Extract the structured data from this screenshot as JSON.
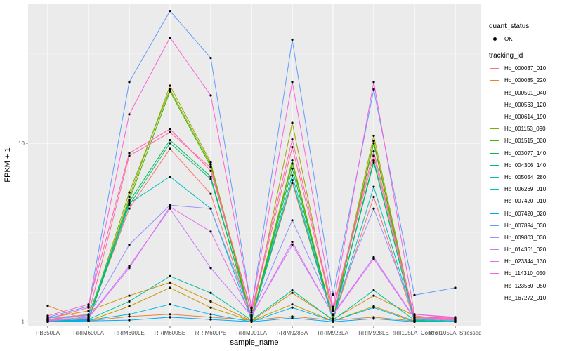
{
  "chart_data": {
    "type": "line",
    "xlabel": "sample_name",
    "ylabel": "FPKM + 1",
    "y_scale": "log10",
    "ylim": [
      0.95,
      60
    ],
    "y_ticks": [
      1,
      10
    ],
    "categories": [
      "PB350LA",
      "RRIM600LA",
      "RRIM600LE",
      "RRIM600SE",
      "RRIM600PE",
      "RRIM901LA",
      "RRIM928BA",
      "RRIM928LA",
      "RRIM928LE",
      "RRII105LA_Control",
      "RRII105LA_Stressed"
    ],
    "legend_quant": {
      "title": "quant_status",
      "items": [
        "OK"
      ]
    },
    "legend_tracking_title": "tracking_id",
    "series": [
      {
        "name": "Hb_000037_010",
        "color": "#F8766D",
        "values": [
          1.03,
          1.04,
          4.3,
          9.3,
          5.2,
          1.04,
          6.0,
          1.02,
          5.0,
          1.01,
          1.0
        ]
      },
      {
        "name": "Hb_000085_220",
        "color": "#EA8331",
        "values": [
          1.23,
          1.01,
          1.07,
          1.1,
          1.06,
          1.02,
          1.07,
          1.02,
          1.06,
          1.01,
          1.0
        ]
      },
      {
        "name": "Hb_000501_040",
        "color": "#D89000",
        "values": [
          1.05,
          1.15,
          1.4,
          1.66,
          1.3,
          1.01,
          1.45,
          1.03,
          1.4,
          1.08,
          1.02
        ]
      },
      {
        "name": "Hb_000563_120",
        "color": "#C09B00",
        "values": [
          1.02,
          1.01,
          1.22,
          1.55,
          1.2,
          1.01,
          1.25,
          1.01,
          1.22,
          1.01,
          1.0
        ]
      },
      {
        "name": "Hb_000614_190",
        "color": "#A3A500",
        "values": [
          1.0,
          1.02,
          5.0,
          21.0,
          7.8,
          1.05,
          13.0,
          1.04,
          11.0,
          1.02,
          1.0
        ]
      },
      {
        "name": "Hb_001153_090",
        "color": "#7CAE00",
        "values": [
          1.01,
          1.03,
          5.3,
          20.0,
          7.6,
          1.04,
          8.0,
          1.03,
          10.3,
          1.01,
          1.0
        ]
      },
      {
        "name": "Hb_001515_030",
        "color": "#39B600",
        "values": [
          1.02,
          1.02,
          4.8,
          19.5,
          7.4,
          1.02,
          7.7,
          1.02,
          10.0,
          1.0,
          1.0
        ]
      },
      {
        "name": "Hb_003077_140",
        "color": "#00BB4E",
        "values": [
          1.01,
          1.02,
          4.7,
          10.4,
          6.5,
          1.02,
          7.2,
          1.03,
          8.0,
          1.01,
          1.0
        ]
      },
      {
        "name": "Hb_004306_140",
        "color": "#00BF7D",
        "values": [
          1.0,
          1.02,
          4.5,
          10.0,
          6.3,
          1.03,
          6.2,
          1.02,
          7.8,
          1.01,
          1.0
        ]
      },
      {
        "name": "Hb_005054_280",
        "color": "#00C1A3",
        "values": [
          1.01,
          1.03,
          1.3,
          1.8,
          1.45,
          1.02,
          1.5,
          1.02,
          1.5,
          1.02,
          1.0
        ]
      },
      {
        "name": "Hb_006269_010",
        "color": "#00BFC4",
        "values": [
          1.05,
          1.09,
          4.6,
          6.5,
          4.3,
          1.02,
          6.6,
          1.02,
          5.7,
          1.03,
          1.01
        ]
      },
      {
        "name": "Hb_007420_010",
        "color": "#00B8E7",
        "values": [
          1.0,
          1.02,
          1.1,
          1.25,
          1.1,
          1.0,
          1.2,
          1.01,
          1.2,
          1.0,
          1.0
        ]
      },
      {
        "name": "Hb_007420_020",
        "color": "#00A9FF",
        "values": [
          1.0,
          1.01,
          1.02,
          1.06,
          1.03,
          1.0,
          1.05,
          1.0,
          1.04,
          1.0,
          1.0
        ]
      },
      {
        "name": "Hb_007894_030",
        "color": "#619CFF",
        "values": [
          1.06,
          1.22,
          22.0,
          55.0,
          30.0,
          1.19,
          38.0,
          1.42,
          20.0,
          1.41,
          1.55
        ]
      },
      {
        "name": "Hb_009803_030",
        "color": "#9590FF",
        "values": [
          1.03,
          1.08,
          2.7,
          4.5,
          4.3,
          1.09,
          3.7,
          1.16,
          4.3,
          1.1,
          1.05
        ]
      },
      {
        "name": "Hb_014361_020",
        "color": "#C77CFF",
        "values": [
          1.02,
          1.06,
          2.05,
          4.3,
          2.0,
          1.08,
          2.7,
          1.1,
          2.3,
          1.05,
          1.03
        ]
      },
      {
        "name": "Hb_023344_130",
        "color": "#E76BF3",
        "values": [
          1.01,
          1.05,
          2.0,
          4.4,
          3.2,
          1.07,
          2.8,
          1.09,
          2.25,
          1.04,
          1.02
        ]
      },
      {
        "name": "Hb_114310_050",
        "color": "#FA62DB",
        "values": [
          1.04,
          1.2,
          14.5,
          39.0,
          18.5,
          1.2,
          22.0,
          1.21,
          22.0,
          1.1,
          1.06
        ]
      },
      {
        "name": "Hb_123560_050",
        "color": "#FF62BC",
        "values": [
          1.08,
          1.25,
          8.8,
          12.0,
          7.0,
          1.16,
          10.5,
          1.18,
          9.0,
          1.06,
          1.05
        ]
      },
      {
        "name": "Hb_167272_010",
        "color": "#FF6C91",
        "values": [
          1.03,
          1.1,
          8.5,
          11.5,
          7.3,
          1.13,
          9.5,
          1.15,
          8.5,
          1.05,
          1.04
        ]
      }
    ]
  }
}
